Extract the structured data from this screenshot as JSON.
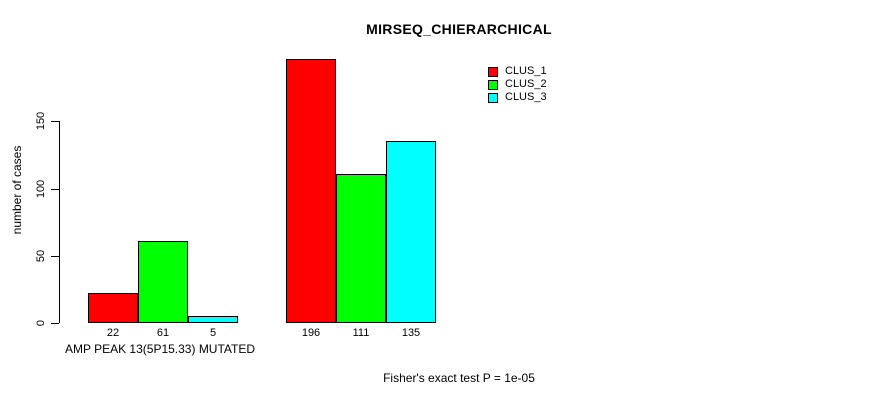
{
  "chart_data": {
    "type": "bar",
    "title": "MIRSEQ_CHIERARCHICAL",
    "ylabel": "number of cases",
    "xlabel": "AMP PEAK 13(5P15.33) MUTATED",
    "annotation": "Fisher's exact test P = 1e-05",
    "categories": [
      "AMP PEAK 13(5P15.33) MUTATED",
      ""
    ],
    "series": [
      {
        "name": "CLUS_1",
        "color": "#ff0000",
        "values": [
          22,
          196
        ]
      },
      {
        "name": "CLUS_2",
        "color": "#00ff00",
        "values": [
          61,
          111
        ]
      },
      {
        "name": "CLUS_3",
        "color": "#00ffff",
        "values": [
          5,
          135
        ]
      }
    ],
    "bar_value_labels": [
      [
        22,
        61,
        5
      ],
      [
        196,
        111,
        135
      ]
    ],
    "yticks": [
      0,
      50,
      100,
      150
    ],
    "ylim": [
      0,
      196
    ],
    "grid": false,
    "legend": {
      "position": "top-right",
      "entries": [
        {
          "label": "CLUS_1",
          "color": "#ff0000"
        },
        {
          "label": "CLUS_2",
          "color": "#00ff00"
        },
        {
          "label": "CLUS_3",
          "color": "#00ffff"
        }
      ]
    },
    "bar_border_color": "#000000",
    "text_color": "#000000",
    "background_color": "#ffffff"
  }
}
